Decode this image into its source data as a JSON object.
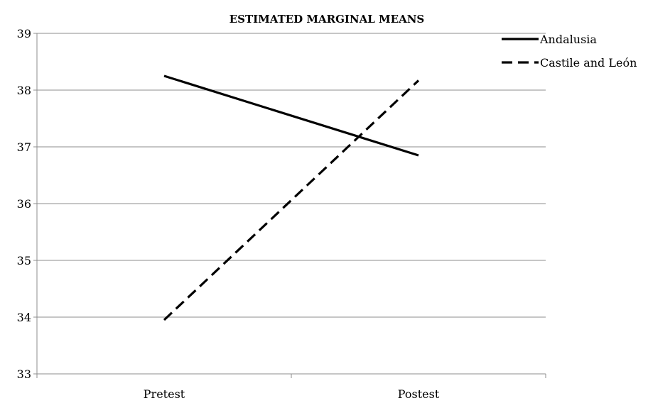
{
  "chart_data": {
    "type": "line",
    "title": "ESTIMATED MARGINAL MEANS",
    "xlabel": "",
    "ylabel": "",
    "categories": [
      "Pretest",
      "Postest"
    ],
    "ylim": [
      33,
      39
    ],
    "yticks": [
      33,
      34,
      35,
      36,
      37,
      38,
      39
    ],
    "grid": "horizontal",
    "legend_position": "top-right",
    "series": [
      {
        "name": "Andalusia",
        "values": [
          38.25,
          36.85
        ],
        "style": "solid",
        "color": "#000000"
      },
      {
        "name": "Castile and León",
        "values": [
          33.95,
          38.17
        ],
        "style": "dashed",
        "color": "#000000"
      }
    ]
  }
}
